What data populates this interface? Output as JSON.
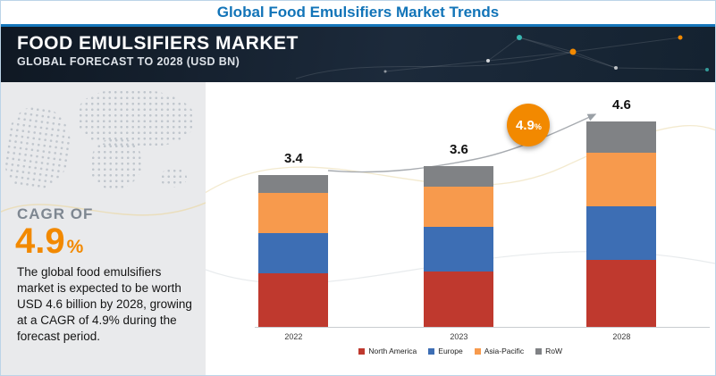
{
  "title": "Global Food Emulsifiers Market Trends",
  "banner": {
    "heading": "FOOD EMULSIFIERS MARKET",
    "subheading": "GLOBAL FORECAST TO 2028 (USD BN)"
  },
  "left_panel": {
    "cagr_label": "CAGR OF",
    "cagr_value": "4.9",
    "cagr_unit": "%",
    "description": "The global food emulsifiers market is expected to be worth USD 4.6 billion by 2028, growing at a CAGR of 4.9% during the forecast period."
  },
  "chart_data": {
    "type": "bar",
    "stacked": true,
    "categories": [
      "2022",
      "2023",
      "2028"
    ],
    "totals": [
      3.4,
      3.6,
      4.6
    ],
    "series": [
      {
        "name": "North America",
        "color": "#bf392e",
        "values": [
          1.2,
          1.25,
          1.5
        ]
      },
      {
        "name": "Europe",
        "color": "#3d6eb4",
        "values": [
          0.9,
          1.0,
          1.2
        ]
      },
      {
        "name": "Asia-Pacific",
        "color": "#f79a4d",
        "values": [
          0.9,
          0.9,
          1.2
        ]
      },
      {
        "name": "RoW",
        "color": "#808285",
        "values": [
          0.4,
          0.45,
          0.7
        ]
      }
    ],
    "unit": "USD BN",
    "legend_position": "bottom",
    "growth_badge": {
      "value": "4.9",
      "unit": "%"
    }
  }
}
